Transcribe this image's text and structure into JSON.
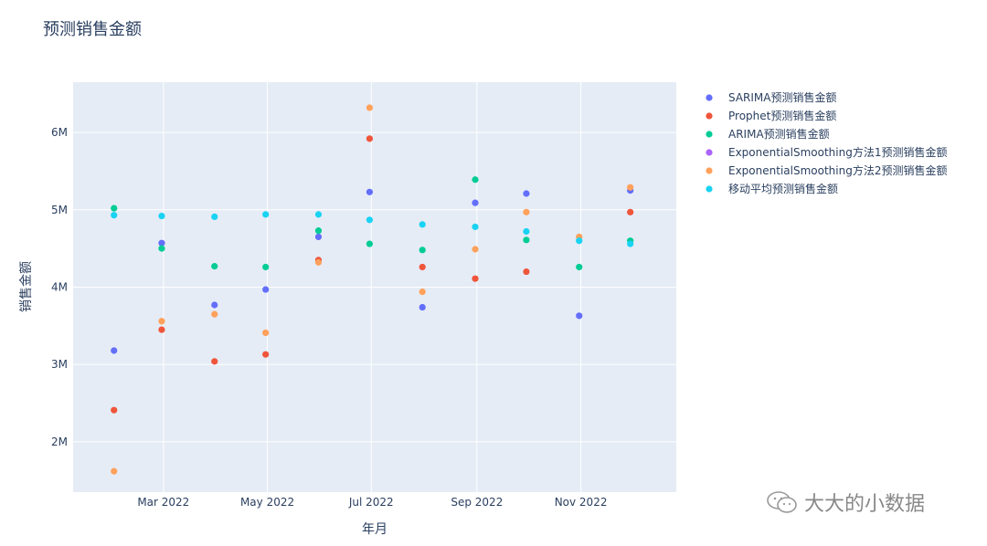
{
  "chart_title": "预测销售金额",
  "watermark": "大大的小数据",
  "chart_data": {
    "type": "scatter",
    "title": "预测销售金额",
    "xlabel": "年月",
    "ylabel": "销售金额",
    "xlim": [
      "2022-01-07",
      "2022-12-27"
    ],
    "ylim": [
      1350000,
      6650000
    ],
    "x_ticks": [
      {
        "date": "2022-03-01",
        "label": "Mar 2022"
      },
      {
        "date": "2022-05-01",
        "label": "May 2022"
      },
      {
        "date": "2022-07-01",
        "label": "Jul 2022"
      },
      {
        "date": "2022-09-01",
        "label": "Sep 2022"
      },
      {
        "date": "2022-11-01",
        "label": "Nov 2022"
      }
    ],
    "y_ticks": [
      {
        "value": 2000000,
        "label": "2M"
      },
      {
        "value": 3000000,
        "label": "3M"
      },
      {
        "value": 4000000,
        "label": "4M"
      },
      {
        "value": 5000000,
        "label": "5M"
      },
      {
        "value": 6000000,
        "label": "6M"
      }
    ],
    "x": [
      "2022-01-31",
      "2022-02-28",
      "2022-03-31",
      "2022-04-30",
      "2022-05-31",
      "2022-06-30",
      "2022-07-31",
      "2022-08-31",
      "2022-09-30",
      "2022-10-31",
      "2022-11-30"
    ],
    "legend_position": "right",
    "grid": true,
    "series": [
      {
        "name": "SARIMA预测销售金额",
        "color": "#636efa",
        "values": [
          3180000,
          4570000,
          3770000,
          3970000,
          4650000,
          5230000,
          3740000,
          5090000,
          5210000,
          3630000,
          5250000
        ]
      },
      {
        "name": "Prophet预测销售金额",
        "color": "#ef553b",
        "values": [
          2410000,
          3450000,
          3040000,
          3130000,
          4350000,
          5920000,
          4260000,
          4110000,
          4200000,
          null,
          4970000
        ]
      },
      {
        "name": "ARIMA预测销售金额",
        "color": "#00cc96",
        "values": [
          5020000,
          4500000,
          4270000,
          4260000,
          4730000,
          4560000,
          4480000,
          5390000,
          4610000,
          4260000,
          4600000
        ]
      },
      {
        "name": "ExponentialSmoothing方法1预测销售金额",
        "color": "#ab63fa",
        "values": [
          null,
          null,
          null,
          null,
          null,
          null,
          null,
          null,
          null,
          null,
          null
        ]
      },
      {
        "name": "ExponentialSmoothing方法2预测销售金额",
        "color": "#ffa15a",
        "values": [
          1620000,
          3560000,
          3650000,
          3410000,
          4320000,
          6320000,
          3940000,
          4490000,
          4970000,
          4650000,
          5290000
        ]
      },
      {
        "name": "移动平均预测销售金额",
        "color": "#19d3f3",
        "values": [
          4930000,
          4920000,
          4910000,
          4940000,
          4940000,
          4870000,
          4810000,
          4780000,
          4720000,
          4600000,
          4560000
        ]
      }
    ]
  }
}
